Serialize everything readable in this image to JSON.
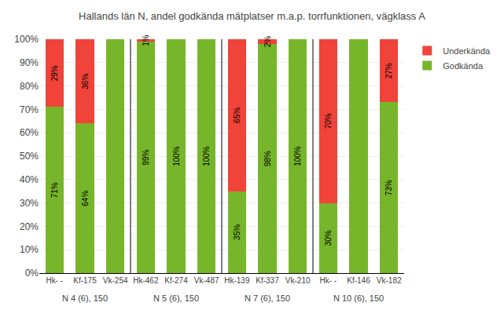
{
  "chart_data": {
    "type": "bar",
    "stacked": true,
    "title": "Hallands län N, andel godkända mätplatser m.a.p. torrfunktionen, vägklass A",
    "categories": [
      "Hk- -",
      "Kf-175",
      "Vk-254",
      "Hk-462",
      "Kf-274",
      "Vk-487",
      "Hk-139",
      "Kf-337",
      "Vk-210",
      "Hk- -",
      "Kf-146",
      "Vk-182"
    ],
    "series": [
      {
        "name": "Godkända",
        "color": "#77b62a",
        "values": [
          71,
          64,
          100,
          99,
          100,
          100,
          35,
          98,
          100,
          30,
          100,
          73
        ],
        "value_labels": [
          "71%",
          "64%",
          null,
          "99%",
          "100%",
          "100%",
          "35%",
          "98%",
          "100%",
          "30%",
          null,
          "73%"
        ]
      },
      {
        "name": "Underkända",
        "color": "#f0433a",
        "values": [
          29,
          36,
          0,
          1,
          0,
          0,
          65,
          2,
          0,
          70,
          0,
          27
        ],
        "value_labels": [
          "29%",
          "36%",
          null,
          "1%",
          null,
          null,
          "65%",
          "2%",
          null,
          "70%",
          null,
          "27%"
        ]
      }
    ],
    "data_labels": true,
    "ylim": [
      0,
      100
    ],
    "yticks": [
      {
        "value": 0,
        "label": "0%"
      },
      {
        "value": 10,
        "label": "10%"
      },
      {
        "value": 20,
        "label": "20%"
      },
      {
        "value": 30,
        "label": "30%"
      },
      {
        "value": 40,
        "label": "40%"
      },
      {
        "value": 50,
        "label": "50%"
      },
      {
        "value": 60,
        "label": "60%"
      },
      {
        "value": 70,
        "label": "70%"
      },
      {
        "value": 80,
        "label": "80%"
      },
      {
        "value": 90,
        "label": "90%"
      },
      {
        "value": 100,
        "label": "100%"
      }
    ],
    "grid": true,
    "legend": "upper right",
    "annotations": [
      {
        "text": "N 4 (6), 150",
        "x": 1
      },
      {
        "text": "N 5 (6), 150",
        "x": 4
      },
      {
        "text": "N 7 (6), 150",
        "x": 7
      },
      {
        "text": "N 10 (6), 150",
        "x": 10
      }
    ]
  }
}
